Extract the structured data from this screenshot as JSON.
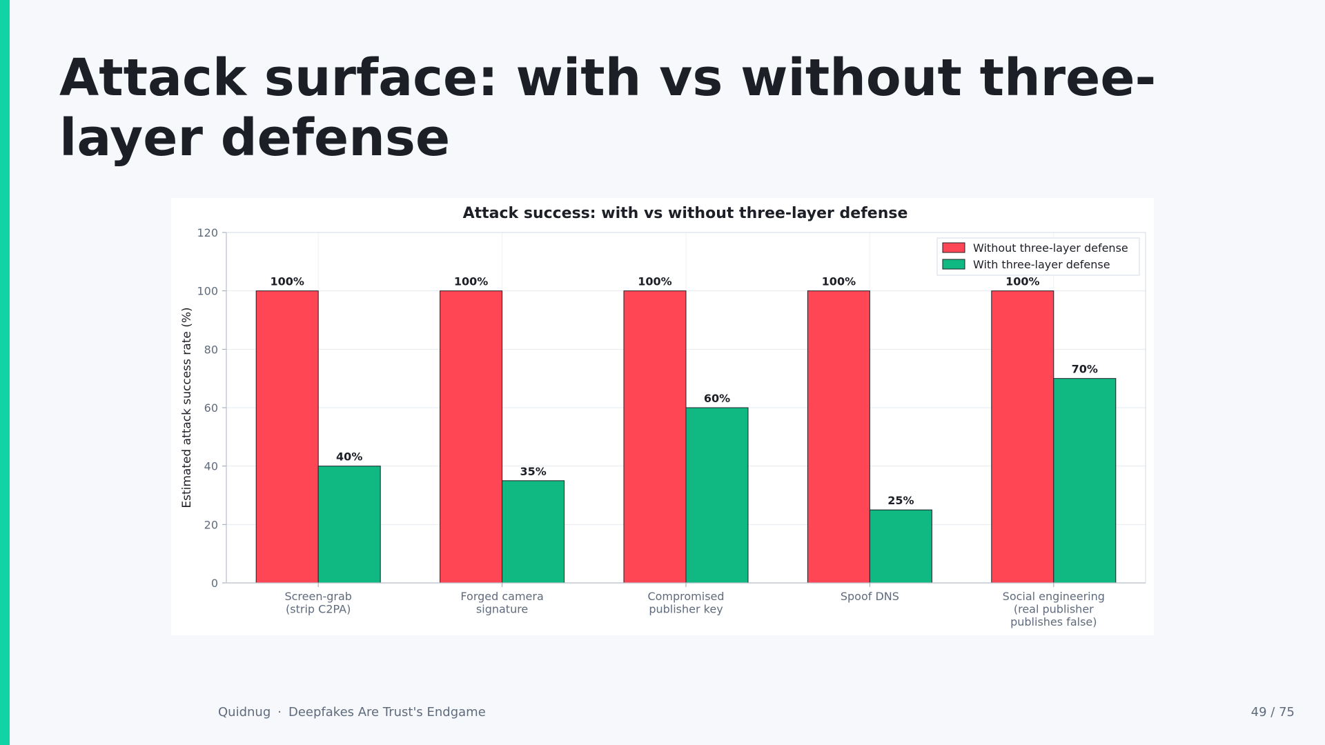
{
  "slide": {
    "title": "Attack surface: with vs without three-layer defense",
    "footer_brand": "Quidnug",
    "footer_separator": "·",
    "footer_deck": "Deepfakes Are Trust's Endgame",
    "page_indicator": "49 / 75"
  },
  "colors": {
    "accent": "#10d3a6",
    "without": "#ff4655",
    "with": "#10b981"
  },
  "chart_data": {
    "type": "bar",
    "title": "Attack success: with vs without three-layer defense",
    "xlabel": "",
    "ylabel": "Estimated attack success rate (%)",
    "ylim": [
      0,
      120
    ],
    "yticks": [
      0,
      20,
      40,
      60,
      80,
      100,
      120
    ],
    "grid": true,
    "legend_position": "top-right",
    "categories": [
      [
        "Screen-grab",
        "(strip C2PA)"
      ],
      [
        "Forged camera",
        "signature"
      ],
      [
        "Compromised",
        "publisher key"
      ],
      [
        "Spoof DNS"
      ],
      [
        "Social engineering",
        "(real publisher",
        "publishes false)"
      ]
    ],
    "series": [
      {
        "name": "Without three-layer defense",
        "values": [
          100,
          100,
          100,
          100,
          100
        ],
        "labels": [
          "100%",
          "100%",
          "100%",
          "100%",
          "100%"
        ]
      },
      {
        "name": "With three-layer defense",
        "values": [
          40,
          35,
          60,
          25,
          70
        ],
        "labels": [
          "40%",
          "35%",
          "60%",
          "25%",
          "70%"
        ]
      }
    ]
  }
}
